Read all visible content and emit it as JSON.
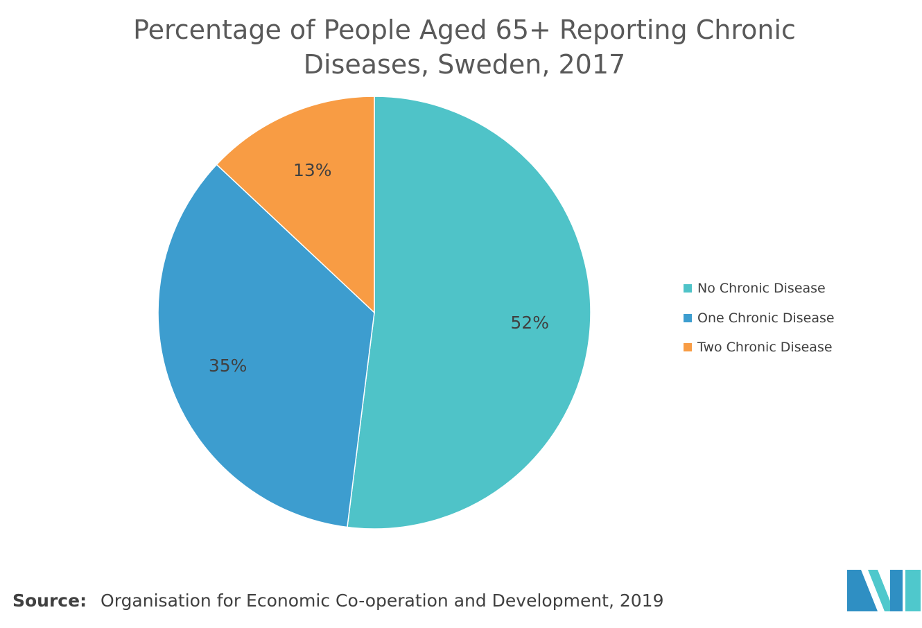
{
  "chart_data": {
    "type": "pie",
    "title_lines": [
      "Percentage of People Aged 65+ Reporting Chronic",
      "Diseases, Sweden, 2017"
    ],
    "slices": [
      {
        "label": "No Chronic Disease",
        "value": 52,
        "display": "52%",
        "color": "#4fc3c8"
      },
      {
        "label": "One Chronic Disease",
        "value": 35,
        "display": "35%",
        "color": "#3d9dcf"
      },
      {
        "label": "Two Chronic Disease",
        "value": 13,
        "display": "13%",
        "color": "#f89c44"
      }
    ],
    "start_angle_deg": 0,
    "direction": "clockwise",
    "legend_position": "right"
  },
  "source": {
    "label": "Source:",
    "text": "Organisation for Economic Co-operation and Development, 2019"
  },
  "logo": {
    "icon": "mordor-logo-icon",
    "colors": [
      "#2f8fc3",
      "#4fc8cc"
    ]
  }
}
